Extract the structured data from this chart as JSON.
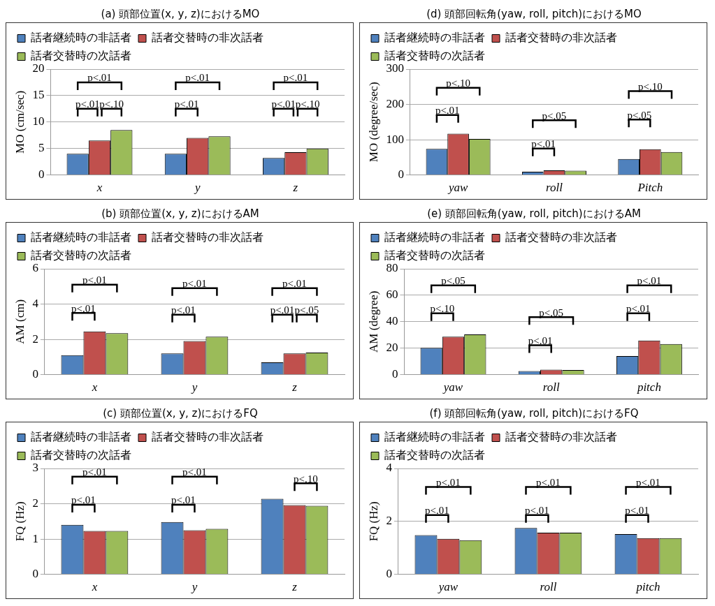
{
  "chart_data": [
    {
      "type": "bar",
      "title": "(a) 頭部位置(x, y, z)におけるMO",
      "ylabel": "MO (cm/sec)",
      "categories": [
        "x",
        "y",
        "z"
      ],
      "series": [
        {
          "name": "話者継続時の非話者",
          "color": "#4f81bd",
          "values": [
            4.0,
            4.0,
            3.2
          ]
        },
        {
          "name": "話者交替時の非次話者",
          "color": "#c0504d",
          "values": [
            6.5,
            7.0,
            4.3
          ]
        },
        {
          "name": "話者交替時の次話者",
          "color": "#9bbb59",
          "values": [
            8.5,
            7.3,
            5.0
          ]
        }
      ],
      "ylim": [
        0,
        20
      ],
      "yticks": [
        0,
        5,
        10,
        15,
        20
      ],
      "grid": "y",
      "legend": "top left",
      "annotations": [
        "p<.01",
        "p<.01",
        "p<.10",
        "p<.01",
        "p<.01",
        "p<.01",
        "p<.01",
        "p<.10"
      ]
    },
    {
      "type": "bar",
      "title": "(d) 頭部回転角(yaw, roll, pitch)におけるMO",
      "ylabel": "MO (degree/sec)",
      "categories": [
        "yaw",
        "roll",
        "Pitch"
      ],
      "series": [
        {
          "name": "話者継続時の非話者",
          "color": "#4f81bd",
          "values": [
            74,
            9,
            45
          ]
        },
        {
          "name": "話者交替時の非次話者",
          "color": "#c0504d",
          "values": [
            117,
            13,
            73
          ]
        },
        {
          "name": "話者交替時の次話者",
          "color": "#9bbb59",
          "values": [
            102,
            12,
            65
          ]
        }
      ],
      "ylim": [
        0,
        300
      ],
      "yticks": [
        0,
        100,
        200,
        300
      ],
      "grid": "y",
      "legend": "top left",
      "annotations": [
        "p<.10",
        "p<.01",
        "p<.05",
        "p<.01",
        "p<.10",
        "p<.05"
      ]
    },
    {
      "type": "bar",
      "title": "(b) 頭部位置(x, y, z)におけるAM",
      "ylabel": "AM (cm)",
      "categories": [
        "x",
        "y",
        "z"
      ],
      "series": [
        {
          "name": "話者継続時の非話者",
          "color": "#4f81bd",
          "values": [
            1.1,
            1.2,
            0.7
          ]
        },
        {
          "name": "話者交替時の非次話者",
          "color": "#c0504d",
          "values": [
            2.45,
            1.9,
            1.2
          ]
        },
        {
          "name": "話者交替時の次話者",
          "color": "#9bbb59",
          "values": [
            2.35,
            2.15,
            1.25
          ]
        }
      ],
      "ylim": [
        0,
        6
      ],
      "yticks": [
        0,
        2,
        4,
        6
      ],
      "grid": "y",
      "legend": "top left",
      "annotations": [
        "p<.01",
        "p<.01",
        "p<.01",
        "p<.01",
        "p<.01",
        "p<.01",
        "p<.05"
      ]
    },
    {
      "type": "bar",
      "title": "(e) 頭部回転角(yaw, roll, pitch)におけるAM",
      "ylabel": "AM (degree)",
      "categories": [
        "yaw",
        "roll",
        "pitch"
      ],
      "series": [
        {
          "name": "話者継続時の非話者",
          "color": "#4f81bd",
          "values": [
            20.3,
            2.7,
            14
          ]
        },
        {
          "name": "話者交替時の非次話者",
          "color": "#c0504d",
          "values": [
            28.7,
            3.7,
            25.8
          ]
        },
        {
          "name": "話者交替時の次話者",
          "color": "#9bbb59",
          "values": [
            30.4,
            3.5,
            23.2
          ]
        }
      ],
      "ylim": [
        0,
        80
      ],
      "yticks": [
        0,
        20,
        40,
        60,
        80
      ],
      "grid": "y",
      "legend": "top left",
      "annotations": [
        "p<.05",
        "p<.10",
        "p<.05",
        "p<.01",
        "p<.01",
        "p<.01"
      ]
    },
    {
      "type": "bar",
      "title": "(c) 頭部位置(x, y, z)におけるFQ",
      "ylabel": "FQ (Hz)",
      "categories": [
        "x",
        "y",
        "z"
      ],
      "series": [
        {
          "name": "話者継続時の非話者",
          "color": "#4f81bd",
          "values": [
            1.4,
            1.48,
            2.14
          ]
        },
        {
          "name": "話者交替時の非次話者",
          "color": "#c0504d",
          "values": [
            1.23,
            1.25,
            1.96
          ]
        },
        {
          "name": "話者交替時の次話者",
          "color": "#9bbb59",
          "values": [
            1.23,
            1.29,
            1.94
          ]
        }
      ],
      "ylim": [
        0,
        3
      ],
      "yticks": [
        0,
        1,
        2,
        3
      ],
      "grid": "y",
      "legend": "top left",
      "annotations": [
        "p<.01",
        "p<.01",
        "p<.01",
        "p<.01",
        "p<.10"
      ]
    },
    {
      "type": "bar",
      "title": "(f) 頭部回転角(yaw, roll, pitch)におけるFQ",
      "ylabel": "FQ (Hz)",
      "categories": [
        "yaw",
        "roll",
        "pitch"
      ],
      "series": [
        {
          "name": "話者継続時の非話者",
          "color": "#4f81bd",
          "values": [
            1.48,
            1.75,
            1.52
          ]
        },
        {
          "name": "話者交替時の非次話者",
          "color": "#c0504d",
          "values": [
            1.34,
            1.57,
            1.37
          ]
        },
        {
          "name": "話者交替時の次話者",
          "color": "#9bbb59",
          "values": [
            1.29,
            1.57,
            1.37
          ]
        }
      ],
      "ylim": [
        0,
        4
      ],
      "yticks": [
        0,
        2,
        4
      ],
      "grid": "y",
      "legend": "top left",
      "annotations": [
        "p<.01",
        "p<.01",
        "p<.01",
        "p<.01",
        "p<.01",
        "p<.01"
      ]
    }
  ]
}
